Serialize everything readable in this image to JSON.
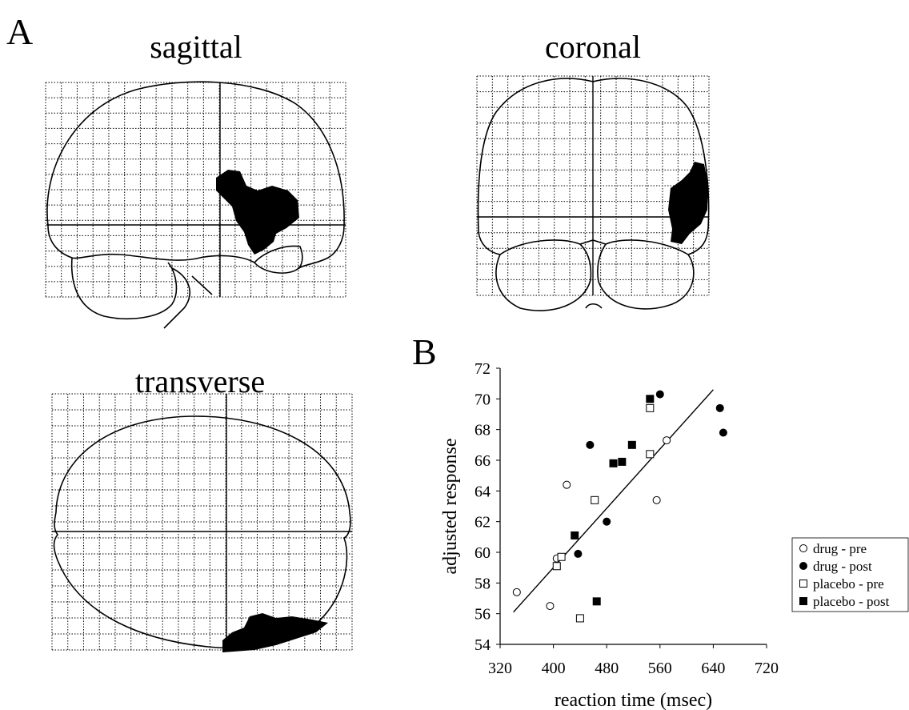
{
  "panel_a": {
    "label": "A",
    "views": [
      "sagittal",
      "coronal",
      "transverse"
    ]
  },
  "chart_data": {
    "type": "scatter",
    "panel_label": "B",
    "xlabel": "reaction time (msec)",
    "ylabel": "adjusted response",
    "xlim": [
      320,
      720
    ],
    "ylim": [
      54,
      72
    ],
    "xticks": [
      320,
      400,
      480,
      560,
      640,
      720
    ],
    "yticks": [
      54,
      56,
      58,
      60,
      62,
      64,
      66,
      68,
      70,
      72
    ],
    "legend": "lower right",
    "series": [
      {
        "name": "drug - pre",
        "color": "#000000",
        "marker": "circle-open",
        "x": [
          345,
          395,
          405,
          420,
          555,
          570
        ],
        "y": [
          57.4,
          56.5,
          59.6,
          64.4,
          63.4,
          67.3
        ]
      },
      {
        "name": "drug - post",
        "color": "#000000",
        "marker": "circle-filled",
        "x": [
          437,
          455,
          480,
          560,
          650,
          655
        ],
        "y": [
          59.9,
          67.0,
          62.0,
          70.3,
          69.4,
          67.8
        ]
      },
      {
        "name": "placebo - pre",
        "color": "#000000",
        "marker": "square-open",
        "x": [
          405,
          412,
          440,
          462,
          545,
          545
        ],
        "y": [
          59.1,
          59.7,
          55.7,
          63.4,
          66.4,
          69.4
        ]
      },
      {
        "name": "placebo - post",
        "color": "#000000",
        "marker": "square-filled",
        "x": [
          432,
          465,
          490,
          503,
          518,
          545
        ],
        "y": [
          61.1,
          56.8,
          65.8,
          65.9,
          67.0,
          70.0
        ]
      }
    ],
    "fit_line": {
      "x": [
        340,
        640
      ],
      "y": [
        56.1,
        70.6
      ]
    }
  }
}
